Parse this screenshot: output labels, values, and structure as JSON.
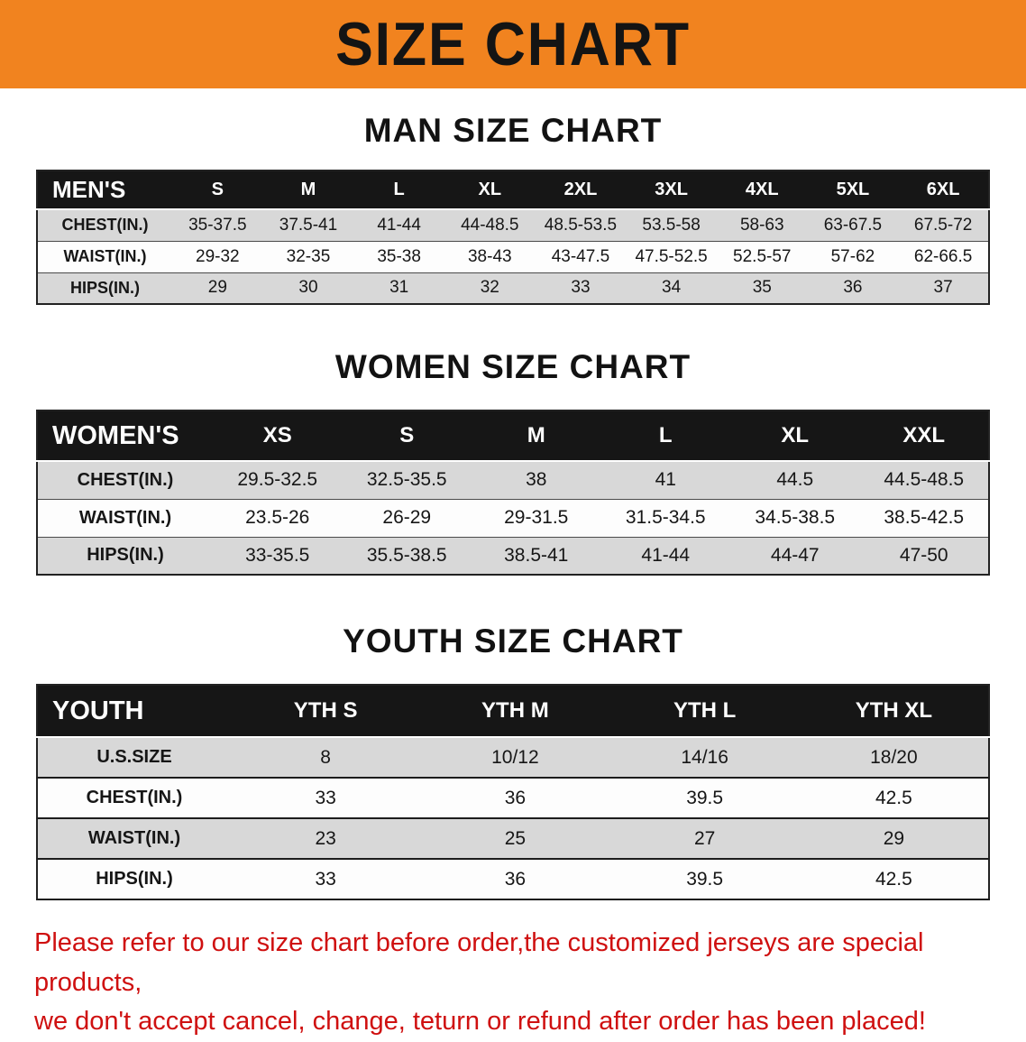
{
  "banner": {
    "title": "SIZE CHART"
  },
  "sections": [
    {
      "title": "MAN SIZE CHART",
      "table": {
        "header_label": "MEN'S",
        "columns": [
          "S",
          "M",
          "L",
          "XL",
          "2XL",
          "3XL",
          "4XL",
          "5XL",
          "6XL"
        ],
        "rows": [
          {
            "label": "CHEST(IN.)",
            "values": [
              "35-37.5",
              "37.5-41",
              "41-44",
              "44-48.5",
              "48.5-53.5",
              "53.5-58",
              "58-63",
              "63-67.5",
              "67.5-72"
            ]
          },
          {
            "label": "WAIST(IN.)",
            "values": [
              "29-32",
              "32-35",
              "35-38",
              "38-43",
              "43-47.5",
              "47.5-52.5",
              "52.5-57",
              "57-62",
              "62-66.5"
            ]
          },
          {
            "label": "HIPS(IN.)",
            "values": [
              "29",
              "30",
              "31",
              "32",
              "33",
              "34",
              "35",
              "36",
              "37"
            ]
          }
        ]
      }
    },
    {
      "title": "WOMEN SIZE CHART",
      "table": {
        "header_label": "WOMEN'S",
        "columns": [
          "XS",
          "S",
          "M",
          "L",
          "XL",
          "XXL"
        ],
        "rows": [
          {
            "label": "CHEST(IN.)",
            "values": [
              "29.5-32.5",
              "32.5-35.5",
              "38",
              "41",
              "44.5",
              "44.5-48.5"
            ]
          },
          {
            "label": "WAIST(IN.)",
            "values": [
              "23.5-26",
              "26-29",
              "29-31.5",
              "31.5-34.5",
              "34.5-38.5",
              "38.5-42.5"
            ]
          },
          {
            "label": "HIPS(IN.)",
            "values": [
              "33-35.5",
              "35.5-38.5",
              "38.5-41",
              "41-44",
              "44-47",
              "47-50"
            ]
          }
        ]
      }
    },
    {
      "title": "YOUTH SIZE CHART",
      "table": {
        "header_label": "YOUTH",
        "columns": [
          "YTH S",
          "YTH M",
          "YTH L",
          "YTH XL"
        ],
        "rows": [
          {
            "label": "U.S.SIZE",
            "values": [
              "8",
              "10/12",
              "14/16",
              "18/20"
            ]
          },
          {
            "label": "CHEST(IN.)",
            "values": [
              "33",
              "36",
              "39.5",
              "42.5"
            ]
          },
          {
            "label": "WAIST(IN.)",
            "values": [
              "23",
              "25",
              "27",
              "29"
            ]
          },
          {
            "label": "HIPS(IN.)",
            "values": [
              "33",
              "36",
              "39.5",
              "42.5"
            ]
          }
        ]
      }
    }
  ],
  "footer": {
    "line1": "Please refer to our size chart before order,the customized jerseys are special products,",
    "line2": "we don't accept cancel, change, teturn or refund after order has been placed!"
  },
  "colors": {
    "banner_bg": "#f1831f",
    "header_bg": "#161616",
    "row_alt_bg": "#d8d8d8",
    "notice_text": "#cf1010"
  }
}
